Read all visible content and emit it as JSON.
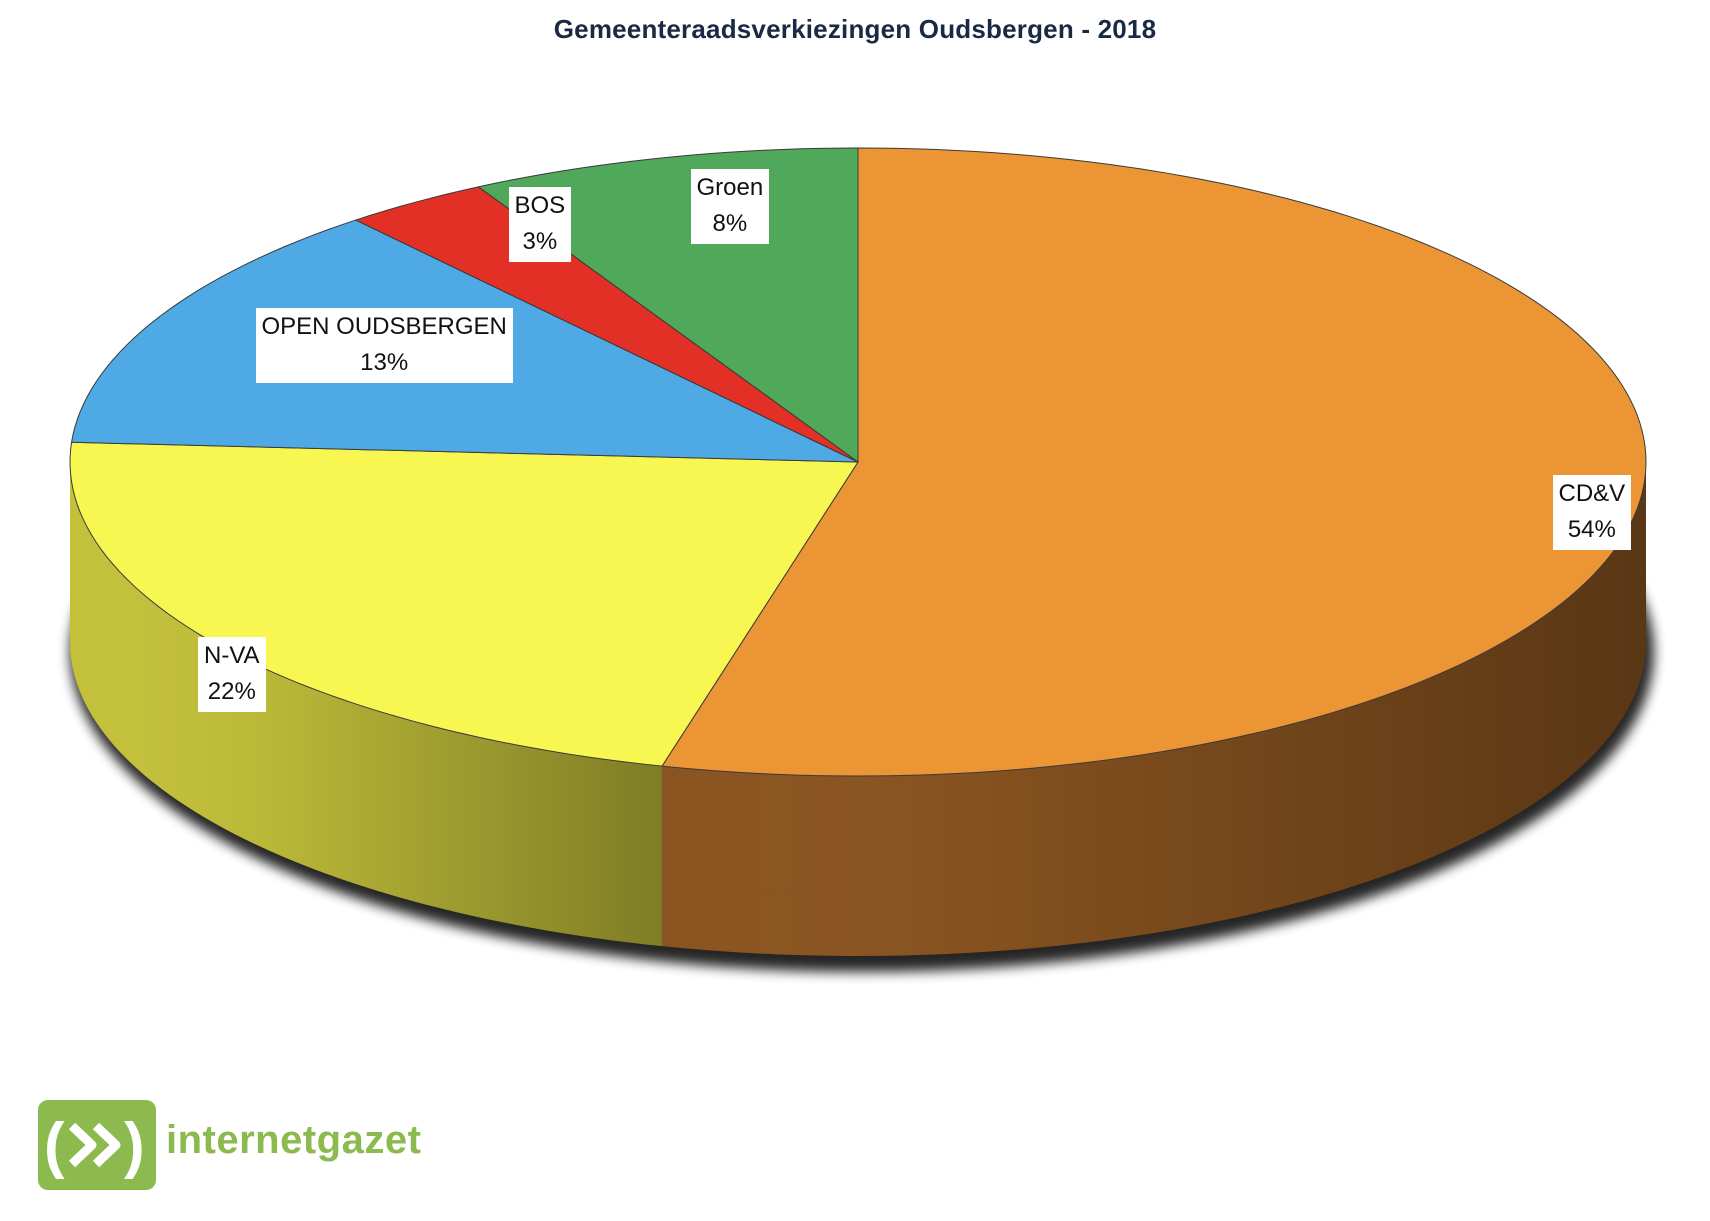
{
  "chart_data": {
    "type": "pie",
    "title": "Gemeenteraadsverkiezingen Oudsbergen - 2018",
    "slices": [
      {
        "label": "CD&V",
        "value": 54,
        "value_label": "54%",
        "color": "#eb9535",
        "side_color": "#8a5420"
      },
      {
        "label": "N-VA",
        "value": 22,
        "value_label": "22%",
        "color": "#f8f752",
        "side_color": "#c3c03a"
      },
      {
        "label": "OPEN OUDSBERGEN",
        "value": 13,
        "value_label": "13%",
        "color": "#4ea9e5",
        "side_color": "#2f6f9a"
      },
      {
        "label": "BOS",
        "value": 3,
        "value_label": "3%",
        "color": "#e23026",
        "side_color": "#8e1c16"
      },
      {
        "label": "Groen",
        "value": 8,
        "value_label": "8%",
        "color": "#50a95a",
        "side_color": "#2f6a36"
      }
    ],
    "start": "12 o'clock",
    "direction": "clockwise",
    "style": "3d",
    "legend": "none"
  },
  "brand": {
    "name": "internetgazet",
    "color": "#8cba4f"
  }
}
